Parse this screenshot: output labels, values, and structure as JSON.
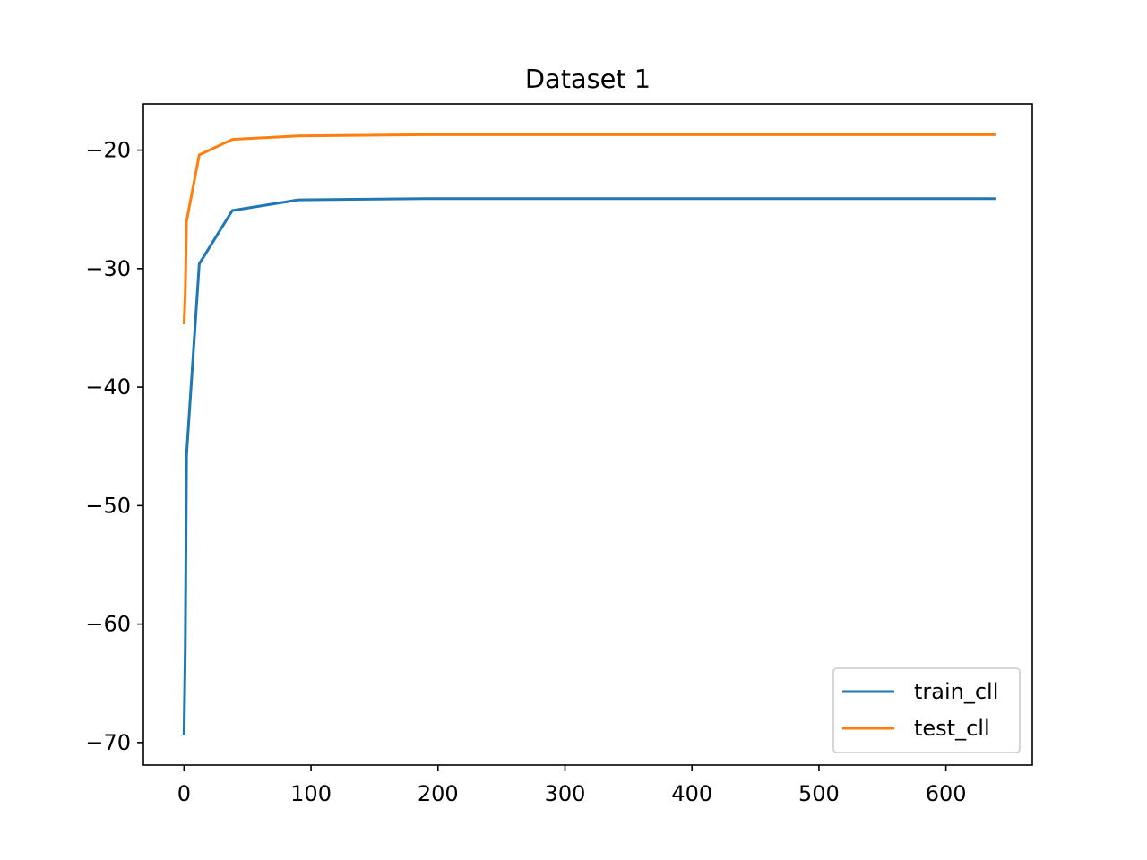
{
  "chart_data": {
    "type": "line",
    "title": "Dataset 1",
    "xlabel": "",
    "ylabel": "",
    "xlim": [
      -32,
      668
    ],
    "ylim": [
      -71.9,
      -16.1
    ],
    "xticks": [
      0,
      100,
      200,
      300,
      400,
      500,
      600
    ],
    "yticks": [
      -70,
      -60,
      -50,
      -40,
      -30,
      -20
    ],
    "grid": false,
    "legend_position": "lower-right",
    "series": [
      {
        "name": "train_cll",
        "color": "#1f77b4",
        "x": [
          0,
          1,
          2,
          12,
          38,
          90,
          190,
          639
        ],
        "y": [
          -69.4,
          -62.0,
          -45.7,
          -29.6,
          -25.1,
          -24.2,
          -24.1,
          -24.1
        ]
      },
      {
        "name": "test_cll",
        "color": "#ff7f0e",
        "x": [
          0,
          1,
          2,
          12,
          38,
          90,
          190,
          639
        ],
        "y": [
          -34.7,
          -32.0,
          -26.0,
          -20.4,
          -19.1,
          -18.8,
          -18.7,
          -18.7
        ]
      }
    ]
  }
}
